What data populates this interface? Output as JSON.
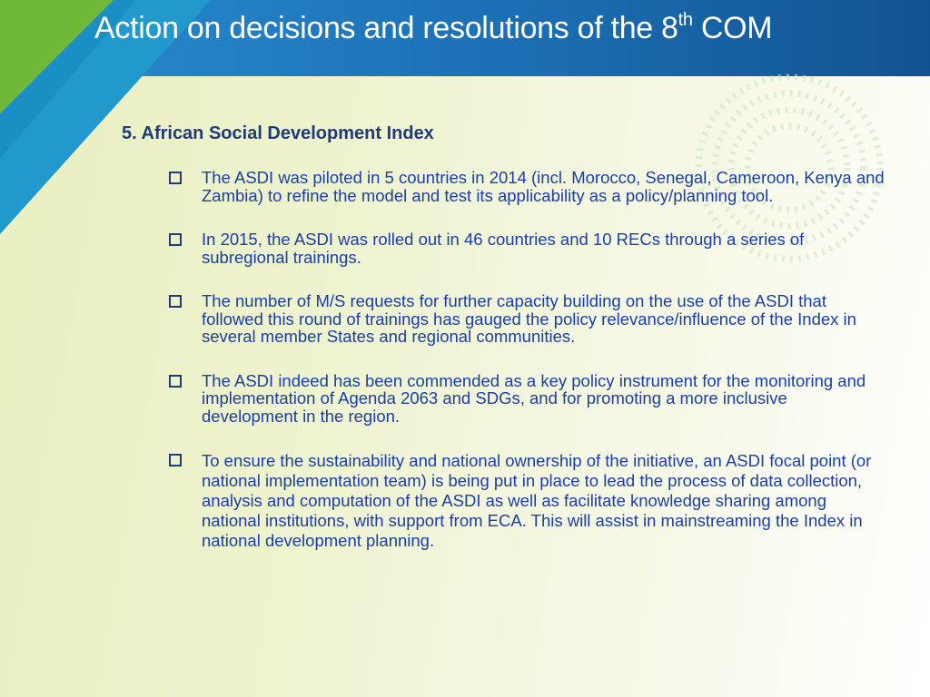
{
  "header": {
    "title_main": "Action on decisions and resolutions of the 8",
    "title_sup": "th",
    "title_end": " COM"
  },
  "section": {
    "heading": "5. African Social Development Index"
  },
  "bullets": [
    "The ASDI was piloted in 5 countries in 2014 (incl. Morocco, Senegal, Cameroon, Kenya and Zambia) to refine the model and test its applicability as a policy/planning tool.",
    "In 2015, the ASDI was rolled out in 46 countries and 10 RECs through a series of subregional trainings.",
    "The number of M/S requests for further capacity building on the use of the ASDI that followed this round of trainings has gauged the policy relevance/influence of the Index in several member States and regional communities.",
    "The ASDI indeed has been commended as a key policy instrument for the monitoring and implementation of Agenda 2063 and SDGs, and for promoting a more inclusive development in the region.",
    "To ensure the sustainability and national ownership of the initiative, an ASDI focal point (or national implementation team) is being put in place to lead the process of data collection, analysis and computation of the ASDI as well as facilitate knowledge sharing among national institutions, with support from ECA. This will assist in mainstreaming the Index in national development planning."
  ],
  "colors": {
    "header_blue": "#1c6fb4",
    "accent_green": "#6fb83a",
    "heading_navy": "#1f3b7a",
    "bullet_text": "#1b3ea5"
  },
  "icons": {
    "bullet": "checkbox-square-icon",
    "watermark": "ring-logo-icon"
  }
}
